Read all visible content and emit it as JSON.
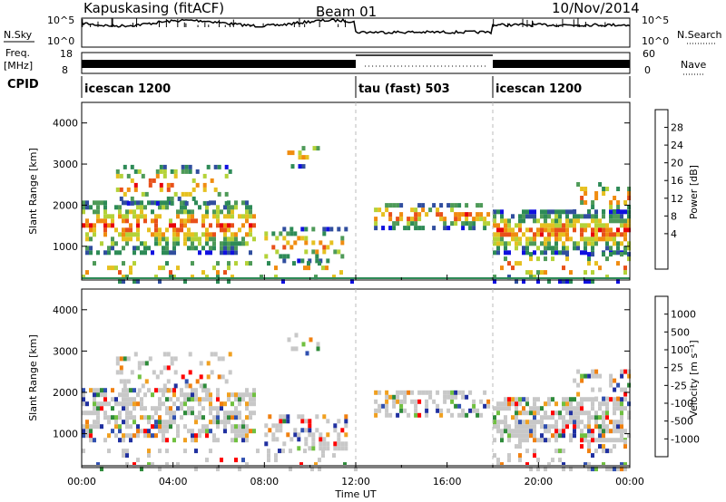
{
  "header": {
    "station": "Kapuskasing (fitACF)",
    "beam": "Beam 01",
    "date": "10/Nov/2014"
  },
  "noise_panel": {
    "left_label": "N.Sky",
    "left_ticks": [
      "10^5",
      "10^0"
    ],
    "right_label": "N.Search",
    "right_ticks": [
      "10^5",
      "10^0"
    ]
  },
  "freq_panel": {
    "left_label_top": "Freq.",
    "left_label_bottom": "[MHz]",
    "left_ticks": [
      "18",
      "8"
    ],
    "right_label": "Nave",
    "right_ticks": [
      "60",
      "0"
    ]
  },
  "cpid": {
    "label": "CPID",
    "segments": [
      {
        "name": "icescan 1200",
        "start_hour": 0,
        "end_hour": 12
      },
      {
        "name": "tau (fast) 503",
        "start_hour": 12,
        "end_hour": 18
      },
      {
        "name": "icescan 1200",
        "start_hour": 18,
        "end_hour": 24
      }
    ]
  },
  "x_axis": {
    "label": "Time UT",
    "ticks": [
      "00:00",
      "04:00",
      "08:00",
      "12:00",
      "16:00",
      "20:00",
      "00:00"
    ]
  },
  "chart_data": [
    {
      "type": "heatmap",
      "name": "power",
      "ylabel": "Slant Range [km]",
      "y_ticks": [
        "1000",
        "2000",
        "3000",
        "4000"
      ],
      "ylim": [
        180,
        4500
      ],
      "xlim_hours": [
        0,
        24
      ],
      "colorbar": {
        "label": "Power [dB]",
        "labels": [
          "28",
          "24",
          "20",
          "16",
          "12",
          "8",
          "4"
        ],
        "colors": [
          "#e8000b",
          "#e8501a",
          "#f08c10",
          "#e6c020",
          "#b4d238",
          "#4e9a58",
          "#2e8b57",
          "#304e9e",
          "#1010e0"
        ]
      }
    },
    {
      "type": "heatmap",
      "name": "velocity",
      "ylabel": "Slant Range [km]",
      "y_ticks": [
        "1000",
        "2000",
        "3000",
        "4000"
      ],
      "ylim": [
        180,
        4500
      ],
      "xlim_hours": [
        0,
        24
      ],
      "colorbar": {
        "label": "Velocity [m s⁻¹]",
        "labels": [
          "1000",
          "500",
          "100",
          "25",
          "-25",
          "-100",
          "-500",
          "-1000"
        ],
        "colors": [
          "#2030a0",
          "#3050b0",
          "#2e8b3a",
          "#70c040",
          "#c8c8c8",
          "#c8c8c8",
          "#f0a020",
          "#f08010",
          "#ff0000"
        ]
      }
    }
  ]
}
